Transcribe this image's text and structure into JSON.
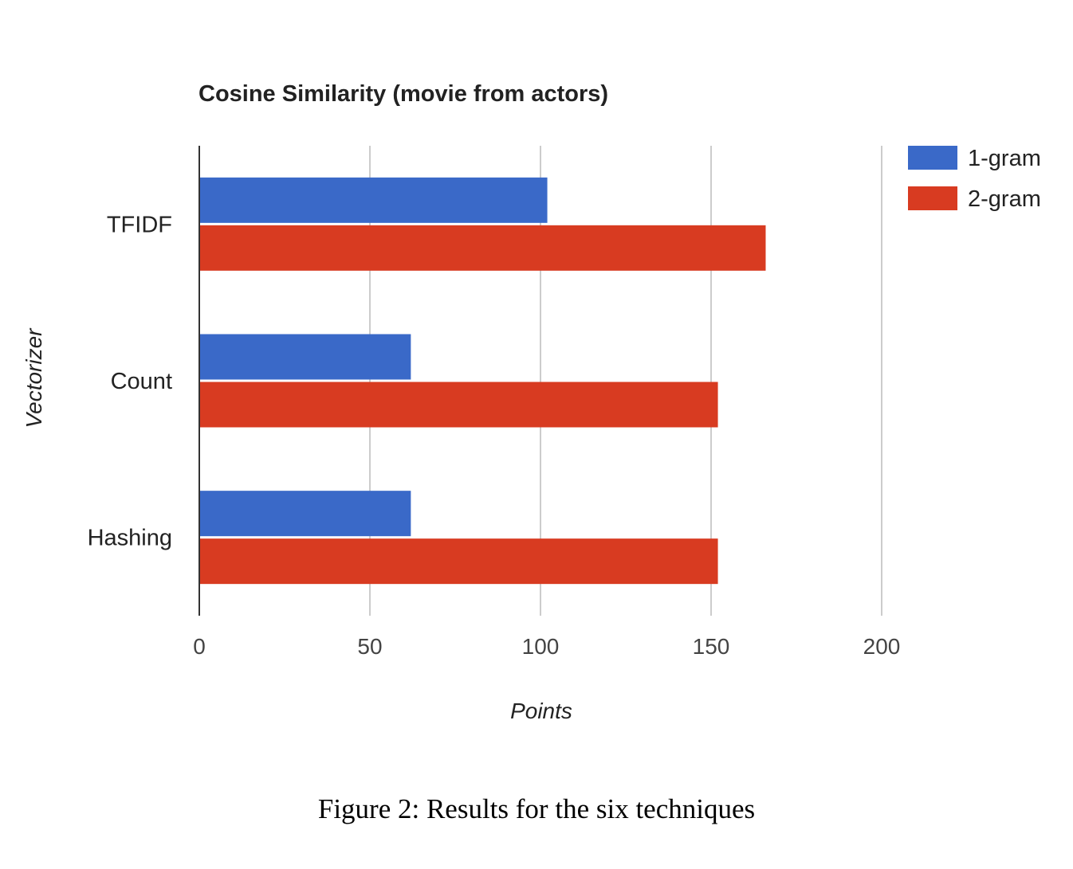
{
  "chart_data": {
    "type": "bar",
    "orientation": "horizontal",
    "title": "Cosine Similarity (movie from actors)",
    "xlabel": "Points",
    "ylabel": "Vectorizer",
    "categories": [
      "TFIDF",
      "Count",
      "Hashing"
    ],
    "series": [
      {
        "name": "1-gram",
        "color": "#3a69c8",
        "values": [
          102,
          62,
          62
        ]
      },
      {
        "name": "2-gram",
        "color": "#d83b21",
        "values": [
          166,
          152,
          152
        ]
      }
    ],
    "xlim": [
      0,
      200
    ],
    "xticks": [
      "0",
      "50",
      "100",
      "150",
      "200"
    ],
    "grid": "vertical",
    "legend_position": "top-right"
  },
  "caption": "Figure 2: Results for the six techniques"
}
